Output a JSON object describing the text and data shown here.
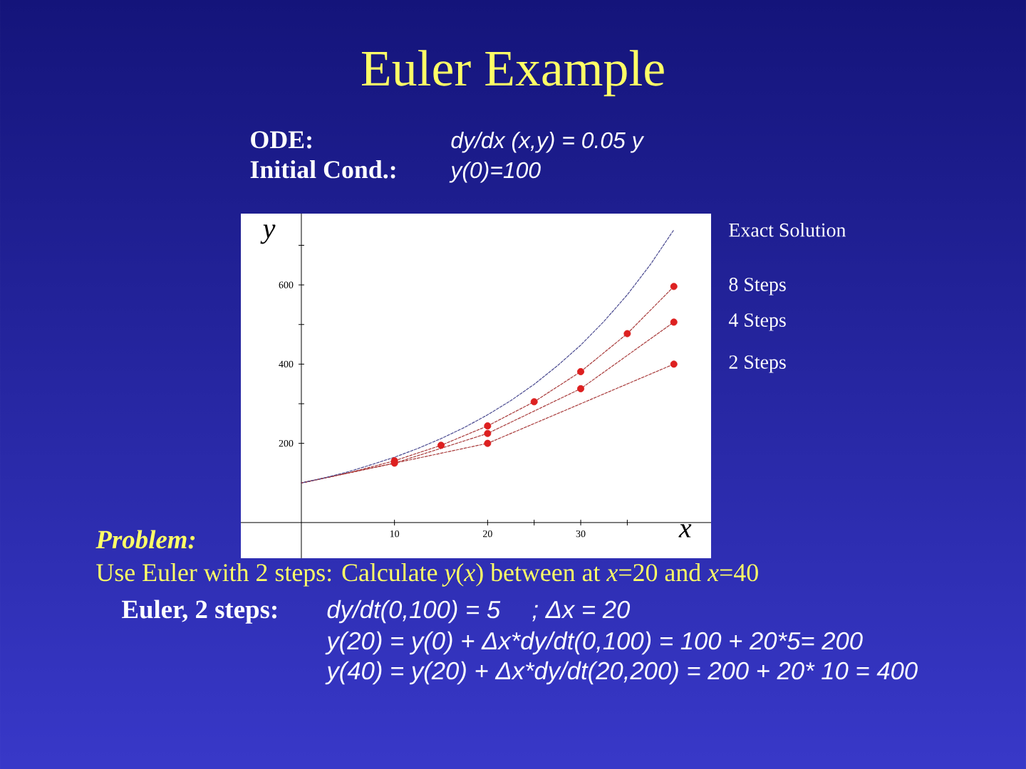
{
  "chart_data": {
    "type": "line",
    "title": "Euler Example",
    "xlabel": "x",
    "ylabel": "y",
    "annotations": [
      "ODE:",
      "dy/dx (x,y) = 0.05 y",
      "Initial Cond.:",
      "y(0)=100",
      "Problem:",
      "Use Euler with 2 steps: Calculate *y*(*x*) between at *x*=20 and *x*=40",
      "Euler, 2 steps:",
      "dy/dt(0,100) = 5",
      "; Δx = 20",
      "y(20) = y(0) + Δx*dy/dt(0,100) = 100 + 20*5= 200",
      "y(40) = y(20) + Δx*dy/dt(20,200) = 200 + 20* 10 = 400"
    ],
    "xlim": [
      -6.5,
      44
    ],
    "ylim": [
      -90,
      780
    ],
    "xticks": [
      10,
      20,
      {
        "value": 25,
        "label": null
      },
      30,
      {
        "value": 35,
        "label": null
      }
    ],
    "yticks": [
      200,
      {
        "value": 300,
        "label": null
      },
      400,
      {
        "value": 500,
        "label": null
      },
      600,
      {
        "value": 700,
        "label": null
      }
    ],
    "line_style": "dashed",
    "series": [
      {
        "name": "8 Steps",
        "color": "#a83a3a",
        "x": [
          0,
          5,
          10,
          15,
          20,
          25,
          30,
          35,
          40
        ],
        "values": [
          100,
          125,
          156,
          195,
          244,
          305,
          381,
          477,
          596
        ]
      },
      {
        "name": "4 Steps",
        "color": "#a83a3a",
        "x": [
          0,
          10,
          20,
          30,
          40
        ],
        "values": [
          100,
          150,
          225,
          338,
          506
        ]
      },
      {
        "name": "2 Steps",
        "color": "#a83a3a",
        "x": [
          0,
          20,
          40
        ],
        "values": [
          100,
          200,
          400
        ]
      },
      {
        "name": "Exact Solution",
        "color": "#4a4a90",
        "x": [
          0,
          2.5,
          5,
          7.5,
          10,
          12.5,
          15,
          17.5,
          20,
          22.5,
          25,
          27.5,
          30,
          32.5,
          35,
          37.5,
          40
        ],
        "values": [
          100,
          113,
          128,
          146,
          165,
          187,
          212,
          240,
          272,
          308,
          349,
          396,
          448,
          508,
          575,
          652,
          739
        ]
      },
      {
        "type": "scatter",
        "marker": "circle",
        "color": "#dd2020",
        "x": [
          10,
          15,
          20,
          25,
          30,
          35,
          40
        ],
        "values": [
          156,
          195,
          244,
          305,
          381,
          477,
          596
        ]
      },
      {
        "type": "scatter",
        "marker": "circle",
        "color": "#dd2020",
        "x": [
          10,
          20,
          30,
          40
        ],
        "values": [
          150,
          225,
          338,
          506
        ]
      },
      {
        "type": "scatter",
        "marker": "circle",
        "color": "#dd2020",
        "x": [
          20,
          40
        ],
        "values": [
          200,
          400
        ]
      }
    ]
  }
}
